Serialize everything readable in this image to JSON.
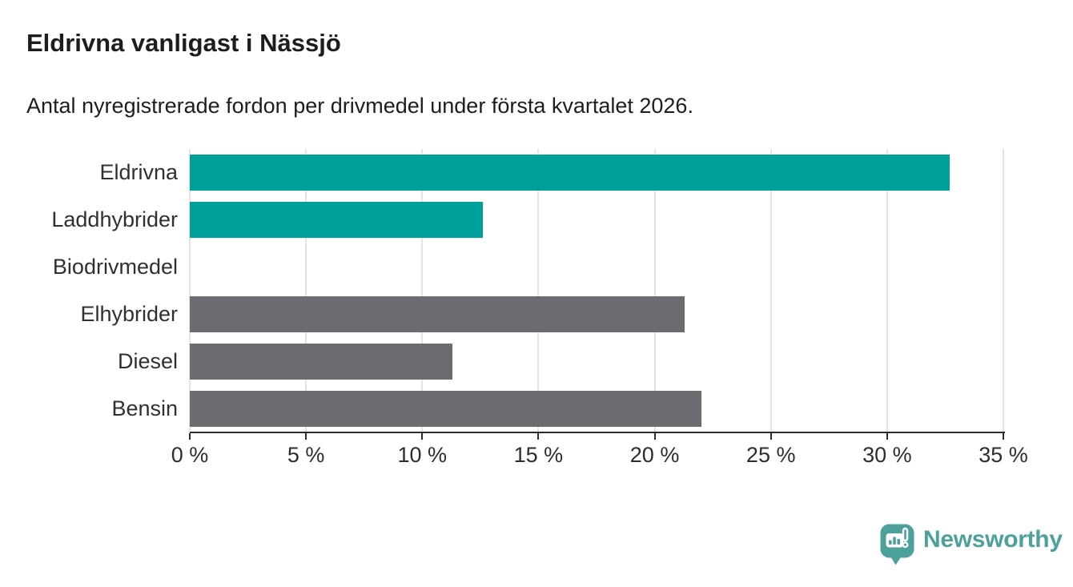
{
  "header": {
    "title": "Eldrivna vanligast i Nässjö",
    "subtitle": "Antal nyregistrerade fordon per drivmedel under första kvartalet 2026."
  },
  "chart_data": {
    "type": "bar",
    "orientation": "horizontal",
    "title": "Eldrivna vanligast i Nässjö",
    "subtitle": "Antal nyregistrerade fordon per drivmedel under första kvartalet 2026.",
    "categories": [
      "Eldrivna",
      "Laddhybrider",
      "Biodrivmedel",
      "Elhybrider",
      "Diesel",
      "Bensin"
    ],
    "values": [
      32.7,
      12.6,
      0,
      21.3,
      11.3,
      22.0
    ],
    "unit": "%",
    "xlabel": "",
    "ylabel": "",
    "xlim": [
      0,
      35
    ],
    "xticks": [
      0,
      5,
      10,
      15,
      20,
      25,
      30,
      35
    ],
    "xtick_labels": [
      "0 %",
      "5 %",
      "10 %",
      "15 %",
      "20 %",
      "25 %",
      "30 %",
      "35 %"
    ],
    "point_colors": [
      "#00a09a",
      "#00a09a",
      "#6b6b70",
      "#6b6b70",
      "#6b6b70",
      "#6b6b70"
    ],
    "grid": "vertical",
    "legend": "none"
  },
  "footer": {
    "brand": "Newsworthy"
  },
  "colors": {
    "highlight": "#00a09a",
    "default_bar": "#6b6b70",
    "grid": "#e4e4e4",
    "axis": "#2d2d2d",
    "text": "#1d1d1b",
    "brand": "#4ca29b",
    "background": "#ffffff"
  }
}
